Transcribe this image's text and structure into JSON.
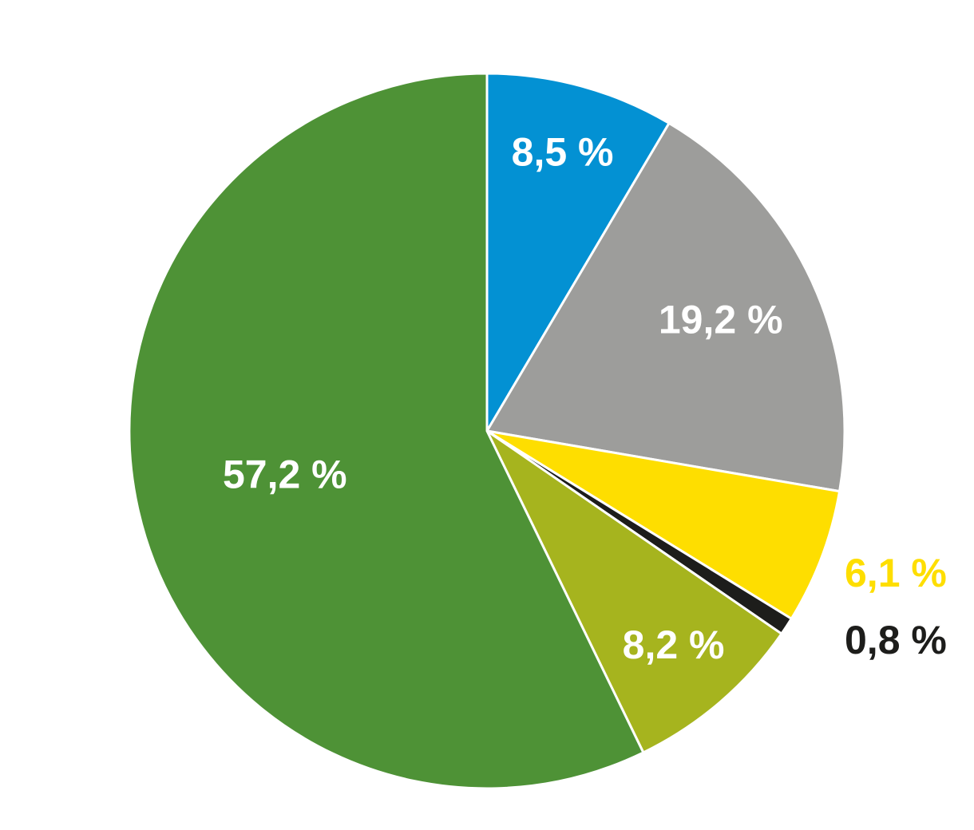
{
  "chart_data": {
    "type": "pie",
    "start_angle_deg": 0,
    "direction": "clockwise",
    "slices": [
      {
        "value": 8.5,
        "label": "8,5 %",
        "color": "#0391D3",
        "label_color": "#ffffff",
        "label_position": "inside"
      },
      {
        "value": 19.2,
        "label": "19,2 %",
        "color": "#9D9D9B",
        "label_color": "#ffffff",
        "label_position": "inside"
      },
      {
        "value": 6.1,
        "label": "6,1 %",
        "color": "#FEDE00",
        "label_color": "#FEDE00",
        "label_position": "outside"
      },
      {
        "value": 0.8,
        "label": "0,8 %",
        "color": "#1D1D1B",
        "label_color": "#1D1D1B",
        "label_position": "outside"
      },
      {
        "value": 8.2,
        "label": "8,2 %",
        "color": "#A6B41E",
        "label_color": "#ffffff",
        "label_position": "inside"
      },
      {
        "value": 57.2,
        "label": "57,2 %",
        "color": "#4E9236",
        "label_color": "#ffffff",
        "label_position": "inside"
      }
    ]
  }
}
